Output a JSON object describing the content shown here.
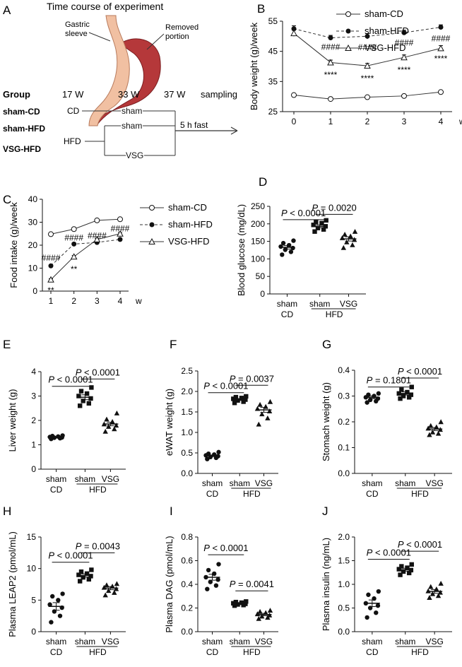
{
  "panel_a": {
    "letter": "A",
    "title": "Time course of experiment",
    "label_sleeve": "Gastric\nsleeve",
    "label_removed": "Removed\nportion",
    "header": {
      "group": "Group",
      "w17": "17 W",
      "w33": "33 W",
      "w37": "37 W",
      "sampling": "sampling"
    },
    "groups": [
      "sham-CD",
      "sham-HFD",
      "VSG-HFD"
    ],
    "diet_cd": "CD",
    "diet_hfd": "HFD",
    "arm_sham": "sham",
    "arm_sham2": "sham",
    "arm_vsg": "VSG",
    "fast": "5 h fast"
  },
  "chart_data": [
    {
      "id": "B",
      "type": "line",
      "letter": "B",
      "ylabel": "Body weight (g)/week",
      "xlabel": "w",
      "x": [
        0,
        1,
        2,
        3,
        4
      ],
      "xticks": [
        "0",
        "1",
        "2",
        "3",
        "4"
      ],
      "ylim": [
        25,
        55
      ],
      "yticks": [
        25,
        35,
        45,
        55
      ],
      "series": [
        {
          "name": "sham-CD",
          "marker": "open-circle",
          "dash": false,
          "values": [
            30.5,
            29.2,
            29.8,
            30.2,
            31.5
          ],
          "err": [
            0.4,
            0.3,
            0.3,
            0.3,
            0.4
          ]
        },
        {
          "name": "sham-HFD",
          "marker": "filled-circle",
          "dash": true,
          "values": [
            52.5,
            49.5,
            50.0,
            51.2,
            53.0
          ],
          "err": [
            1.0,
            0.8,
            0.9,
            0.8,
            0.8
          ]
        },
        {
          "name": "VSG-HFD",
          "marker": "open-triangle",
          "dash": false,
          "values": [
            51.0,
            41.3,
            40.2,
            43.0,
            46.0
          ],
          "err": [
            1.0,
            0.8,
            0.8,
            0.8,
            0.9
          ]
        }
      ],
      "annotations": [
        {
          "text": "####",
          "x": 1,
          "y": 46.5
        },
        {
          "text": "####",
          "x": 2,
          "y": 46.3
        },
        {
          "text": "####",
          "x": 3,
          "y": 47.8
        },
        {
          "text": "####",
          "x": 4,
          "y": 49.3
        },
        {
          "text": "****",
          "x": 1,
          "y": 37.2
        },
        {
          "text": "****",
          "x": 2,
          "y": 36.0
        },
        {
          "text": "****",
          "x": 3,
          "y": 38.8
        },
        {
          "text": "****",
          "x": 4,
          "y": 42.6
        }
      ]
    },
    {
      "id": "C",
      "type": "line",
      "letter": "C",
      "ylabel": "Food intake (g)/week",
      "xlabel": "w",
      "x": [
        1,
        2,
        3,
        4
      ],
      "xticks": [
        "1",
        "2",
        "3",
        "4"
      ],
      "ylim": [
        0,
        40
      ],
      "yticks": [
        0,
        10,
        20,
        30,
        40
      ],
      "series": [
        {
          "name": "sham-CD",
          "marker": "open-circle",
          "dash": false,
          "values": [
            24.8,
            27.0,
            30.8,
            31.3
          ],
          "err": [
            0.3,
            0.3,
            0.4,
            0.3
          ]
        },
        {
          "name": "sham-HFD",
          "marker": "filled-circle",
          "dash": true,
          "values": [
            11.0,
            20.5,
            21.2,
            22.5
          ],
          "err": [
            0.4,
            0.5,
            0.4,
            0.5
          ]
        },
        {
          "name": "VSG-HFD",
          "marker": "open-triangle",
          "dash": false,
          "values": [
            5.0,
            15.0,
            22.5,
            25.0
          ],
          "err": [
            0.4,
            0.5,
            0.5,
            0.5
          ]
        }
      ],
      "annotations": [
        {
          "text": "####",
          "x": 1,
          "y": 14.5
        },
        {
          "text": "####",
          "x": 2,
          "y": 23.2
        },
        {
          "text": "####",
          "x": 3,
          "y": 24.2
        },
        {
          "text": "####",
          "x": 4,
          "y": 27.2
        },
        {
          "text": "**",
          "x": 1,
          "y": 0.3
        },
        {
          "text": "**",
          "x": 2,
          "y": 9.5
        }
      ]
    },
    {
      "id": "D",
      "type": "scatter",
      "letter": "D",
      "ylabel": "Blood glucose (mg/dL)",
      "ylim": [
        0,
        250
      ],
      "yticks": [
        0,
        50,
        100,
        150,
        200,
        250
      ],
      "categories": [
        "sham",
        "sham",
        "VSG"
      ],
      "cd_label": "CD",
      "hfd_label": "HFD",
      "groups": [
        {
          "marker": "circle",
          "points": [
            112,
            120,
            126,
            131,
            135,
            139,
            145,
            152
          ],
          "mean": 133,
          "sem": 5
        },
        {
          "marker": "square",
          "points": [
            178,
            184,
            188,
            193,
            197,
            202,
            205,
            210
          ],
          "mean": 193,
          "sem": 4
        },
        {
          "marker": "triangle",
          "points": [
            132,
            140,
            148,
            155,
            160,
            165,
            170,
            178
          ],
          "mean": 157,
          "sem": 6
        }
      ],
      "comparisons": [
        {
          "text": "P = 0.0020",
          "p": "P",
          "rest": " = 0.0020",
          "from": 1,
          "to": 2,
          "y": 227
        },
        {
          "text": "P < 0.0001",
          "p": "P",
          "rest": " < 0.0001",
          "from": 0,
          "to": 1,
          "y": 212
        }
      ]
    },
    {
      "id": "E",
      "type": "scatter",
      "letter": "E",
      "ylabel": "Liver weight (g)",
      "ylim": [
        0,
        4
      ],
      "yticks": [
        0,
        1,
        2,
        3,
        4
      ],
      "categories": [
        "sham",
        "sham",
        "VSG"
      ],
      "cd_label": "CD",
      "hfd_label": "HFD",
      "groups": [
        {
          "marker": "circle",
          "points": [
            1.24,
            1.27,
            1.29,
            1.3,
            1.32,
            1.34,
            1.36,
            1.38
          ],
          "mean": 1.3,
          "sem": 0.02
        },
        {
          "marker": "square",
          "points": [
            2.6,
            2.7,
            2.8,
            2.9,
            3.0,
            3.1,
            3.2,
            3.35
          ],
          "mean": 2.95,
          "sem": 0.1
        },
        {
          "marker": "triangle",
          "points": [
            1.55,
            1.65,
            1.75,
            1.8,
            1.85,
            1.95,
            2.05,
            2.3
          ],
          "mean": 1.85,
          "sem": 0.07
        }
      ],
      "comparisons": [
        {
          "text": "P < 0.0001",
          "p": "P",
          "rest": " < 0.0001",
          "from": 1,
          "to": 2,
          "y": 3.7
        },
        {
          "text": "P < 0.0001",
          "p": "P",
          "rest": " < 0.0001",
          "from": 0,
          "to": 1,
          "y": 3.4
        }
      ]
    },
    {
      "id": "F",
      "type": "scatter",
      "letter": "F",
      "ylabel": "eWAT weight (g)",
      "ylim": [
        0,
        2.5
      ],
      "yticks": [
        0.0,
        0.5,
        1.0,
        1.5,
        2.0,
        2.5
      ],
      "categories": [
        "sham",
        "sham",
        "VSG"
      ],
      "cd_label": "CD",
      "hfd_label": "HFD",
      "groups": [
        {
          "marker": "circle",
          "points": [
            0.35,
            0.38,
            0.4,
            0.42,
            0.44,
            0.46,
            0.48,
            0.52
          ],
          "mean": 0.43,
          "sem": 0.02
        },
        {
          "marker": "square",
          "points": [
            1.72,
            1.75,
            1.78,
            1.8,
            1.82,
            1.84,
            1.86,
            1.88
          ],
          "mean": 1.8,
          "sem": 0.02
        },
        {
          "marker": "triangle",
          "points": [
            1.2,
            1.35,
            1.45,
            1.52,
            1.58,
            1.63,
            1.68,
            1.75
          ],
          "mean": 1.55,
          "sem": 0.06
        }
      ],
      "comparisons": [
        {
          "text": "P = 0.0037",
          "p": "P",
          "rest": " = 0.0037",
          "from": 1,
          "to": 2,
          "y": 2.15
        },
        {
          "text": "P < 0.0001",
          "p": "P",
          "rest": " < 0.0001",
          "from": 0,
          "to": 1,
          "y": 1.97
        }
      ]
    },
    {
      "id": "G",
      "type": "scatter",
      "letter": "G",
      "ylabel": "Stomach weight (g)",
      "ylim": [
        0,
        0.4
      ],
      "yticks": [
        0.0,
        0.1,
        0.2,
        0.3,
        0.4
      ],
      "categories": [
        "sham",
        "sham",
        "VSG"
      ],
      "cd_label": "CD",
      "hfd_label": "HFD",
      "groups": [
        {
          "marker": "circle",
          "points": [
            0.275,
            0.28,
            0.285,
            0.29,
            0.295,
            0.3,
            0.305,
            0.31
          ],
          "mean": 0.295,
          "sem": 0.005
        },
        {
          "marker": "square",
          "points": [
            0.29,
            0.295,
            0.3,
            0.305,
            0.31,
            0.315,
            0.325,
            0.335
          ],
          "mean": 0.31,
          "sem": 0.006
        },
        {
          "marker": "triangle",
          "points": [
            0.15,
            0.155,
            0.16,
            0.17,
            0.175,
            0.18,
            0.185,
            0.2
          ],
          "mean": 0.172,
          "sem": 0.006
        }
      ],
      "comparisons": [
        {
          "text": "P < 0.0001",
          "p": "P",
          "rest": " < 0.0001",
          "from": 1,
          "to": 2,
          "y": 0.37
        },
        {
          "text": "P = 0.1801",
          "p": "P",
          "rest": " = 0.1801",
          "from": 0,
          "to": 1,
          "y": 0.335
        }
      ]
    },
    {
      "id": "H",
      "type": "scatter",
      "letter": "H",
      "ylabel": "Plasma LEAP2 (pmol/mL)",
      "ylim": [
        0,
        15
      ],
      "yticks": [
        0,
        5,
        10,
        15
      ],
      "categories": [
        "sham",
        "sham",
        "VSG"
      ],
      "cd_label": "CD",
      "hfd_label": "HFD",
      "groups": [
        {
          "marker": "circle",
          "points": [
            1.5,
            2.5,
            3.2,
            3.8,
            4.3,
            5.0,
            5.6,
            6.0
          ],
          "mean": 4.0,
          "sem": 0.6
        },
        {
          "marker": "square",
          "points": [
            8.0,
            8.3,
            8.6,
            8.8,
            9.0,
            9.2,
            9.5,
            9.8
          ],
          "mean": 8.9,
          "sem": 0.25
        },
        {
          "marker": "triangle",
          "points": [
            5.8,
            6.2,
            6.5,
            6.8,
            7.0,
            7.2,
            7.4,
            7.6
          ],
          "mean": 6.9,
          "sem": 0.25
        }
      ],
      "comparisons": [
        {
          "text": "P = 0.0043",
          "p": "P",
          "rest": " = 0.0043",
          "from": 1,
          "to": 2,
          "y": 12.5
        },
        {
          "text": "P < 0.0001",
          "p": "P",
          "rest": " < 0.0001",
          "from": 0,
          "to": 1,
          "y": 11.0
        }
      ]
    },
    {
      "id": "I",
      "type": "scatter",
      "letter": "I",
      "ylabel": "Plasma DAG (pmol/mL)",
      "ylim": [
        0,
        0.8
      ],
      "yticks": [
        0.0,
        0.2,
        0.4,
        0.6,
        0.8
      ],
      "categories": [
        "sham",
        "sham",
        "VSG"
      ],
      "cd_label": "CD",
      "hfd_label": "HFD",
      "groups": [
        {
          "marker": "circle",
          "points": [
            0.36,
            0.39,
            0.42,
            0.44,
            0.46,
            0.49,
            0.52,
            0.57
          ],
          "mean": 0.46,
          "sem": 0.025
        },
        {
          "marker": "square",
          "points": [
            0.22,
            0.225,
            0.23,
            0.235,
            0.24,
            0.245,
            0.25,
            0.255
          ],
          "mean": 0.235,
          "sem": 0.006
        },
        {
          "marker": "triangle",
          "points": [
            0.11,
            0.12,
            0.13,
            0.14,
            0.15,
            0.16,
            0.17,
            0.18
          ],
          "mean": 0.145,
          "sem": 0.01
        }
      ],
      "comparisons": [
        {
          "text": "P < 0.0001",
          "p": "P",
          "rest": " < 0.0001",
          "from": 0,
          "to": 1,
          "y": 0.65
        },
        {
          "text": "P = 0.0041",
          "p": "P",
          "rest": " = 0.0041",
          "from": 1,
          "to": 2,
          "y": 0.345
        }
      ]
    },
    {
      "id": "J",
      "type": "scatter",
      "letter": "J",
      "ylabel": "Plasma insulin (ng/mL)",
      "ylim": [
        0,
        2.0
      ],
      "yticks": [
        0.0,
        0.5,
        1.0,
        1.5,
        2.0
      ],
      "categories": [
        "sham",
        "sham",
        "VSG"
      ],
      "cd_label": "CD",
      "hfd_label": "HFD",
      "groups": [
        {
          "marker": "circle",
          "points": [
            0.3,
            0.4,
            0.5,
            0.55,
            0.6,
            0.7,
            0.78,
            0.85
          ],
          "mean": 0.6,
          "sem": 0.07
        },
        {
          "marker": "square",
          "points": [
            1.2,
            1.24,
            1.27,
            1.3,
            1.32,
            1.35,
            1.38,
            1.42
          ],
          "mean": 1.31,
          "sem": 0.03
        },
        {
          "marker": "triangle",
          "points": [
            0.72,
            0.76,
            0.8,
            0.83,
            0.86,
            0.9,
            0.95,
            1.02
          ],
          "mean": 0.85,
          "sem": 0.04
        }
      ],
      "comparisons": [
        {
          "text": "P < 0.0001",
          "p": "P",
          "rest": " < 0.0001",
          "from": 1,
          "to": 2,
          "y": 1.7
        },
        {
          "text": "P < 0.0001",
          "p": "P",
          "rest": " < 0.0001",
          "from": 0,
          "to": 1,
          "y": 1.53
        }
      ]
    }
  ]
}
